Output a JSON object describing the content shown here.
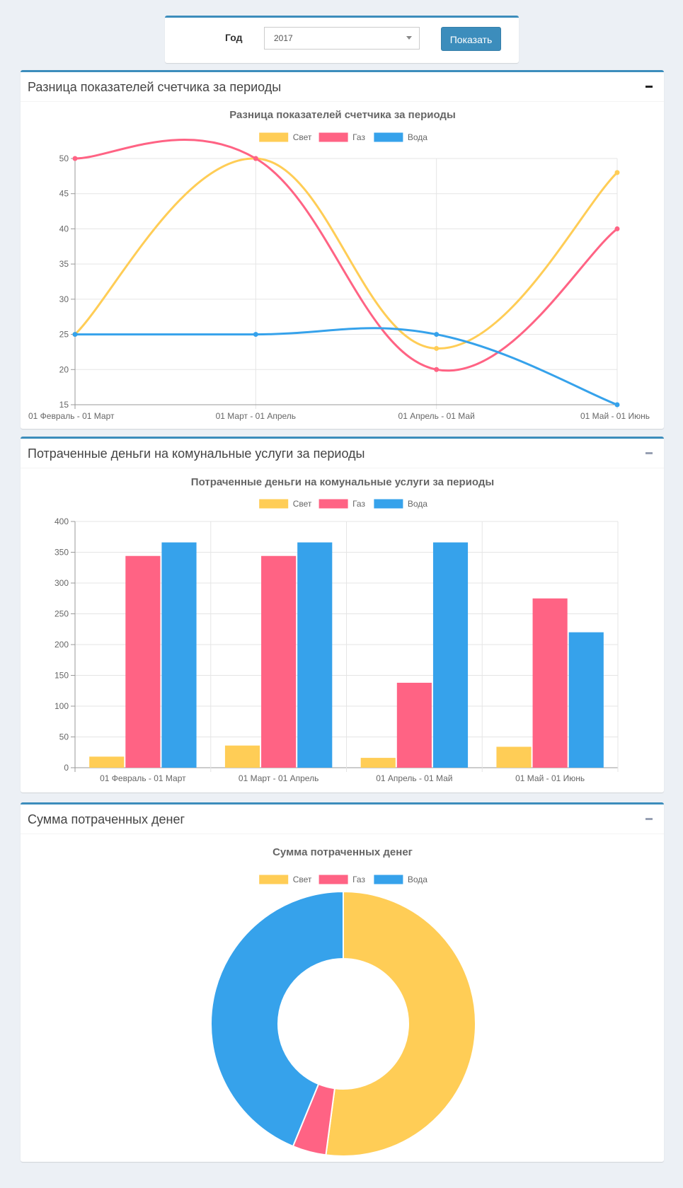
{
  "filter": {
    "label": "Год",
    "year_selected": "2017",
    "submit_label": "Показать"
  },
  "colors": {
    "accent": "#3c8dbc",
    "svet": "#ffcd56",
    "gaz": "#ff6384",
    "voda": "#36a2eb"
  },
  "panels": [
    {
      "title": "Разница показателей счетчика за периоды"
    },
    {
      "title": "Потраченные деньги на комунальные услуги за периоды"
    },
    {
      "title": "Сумма потраченных денег"
    }
  ],
  "chart_data": [
    {
      "type": "line",
      "title": "Разница показателей счетчика за периоды",
      "categories": [
        "01 Февраль  - 01 Март",
        "01 Март  - 01 Апрель",
        "01 Апрель  - 01 Май",
        "01 Май  - 01 Июнь"
      ],
      "series": [
        {
          "name": "Свет",
          "color": "#ffcd56",
          "values": [
            25,
            50,
            23,
            48
          ]
        },
        {
          "name": "Газ",
          "color": "#ff6384",
          "values": [
            50,
            50,
            20,
            40
          ]
        },
        {
          "name": "Вода",
          "color": "#36a2eb",
          "values": [
            25,
            25,
            25,
            15
          ]
        }
      ],
      "ylim": [
        15,
        50
      ],
      "yticks": [
        50,
        45,
        40,
        35,
        30,
        25,
        20,
        15
      ],
      "grid": true,
      "legend": "top",
      "xlabel": "",
      "ylabel": ""
    },
    {
      "type": "bar",
      "title": "Потраченные деньги на комунальные услуги за периоды",
      "categories": [
        "01 Февраль  - 01 Март",
        "01 Март  - 01 Апрель",
        "01 Апрель  - 01 Май",
        "01 Май  - 01 Июнь"
      ],
      "series": [
        {
          "name": "Свет",
          "color": "#ffcd56",
          "values": [
            18,
            36,
            16,
            34
          ]
        },
        {
          "name": "Газ",
          "color": "#ff6384",
          "values": [
            344,
            344,
            138,
            275
          ]
        },
        {
          "name": "Вода",
          "color": "#36a2eb",
          "values": [
            366,
            366,
            366,
            220
          ]
        }
      ],
      "ylim": [
        0,
        400
      ],
      "yticks": [
        400,
        350,
        300,
        250,
        200,
        150,
        100,
        50,
        0
      ],
      "grid": true,
      "legend": "top",
      "xlabel": "",
      "ylabel": ""
    },
    {
      "type": "pie",
      "subtype": "doughnut",
      "title": "Сумма потраченных денег",
      "labels": [
        "Свет",
        "Газ",
        "Вода"
      ],
      "colors": [
        "#ffcd56",
        "#ff6384",
        "#36a2eb"
      ],
      "values": [
        52.1,
        4.1,
        43.8
      ],
      "legend": "top"
    }
  ]
}
